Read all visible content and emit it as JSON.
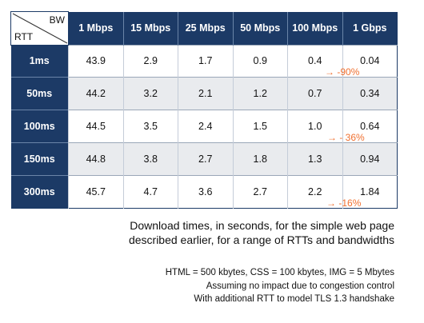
{
  "table": {
    "corner": {
      "col_header": "BW",
      "row_header": "RTT"
    },
    "columns": [
      "1 Mbps",
      "15 Mbps",
      "25 Mbps",
      "50 Mbps",
      "100 Mbps",
      "1 Gbps"
    ],
    "rows": [
      {
        "label": "1ms",
        "values": [
          "43.9",
          "2.9",
          "1.7",
          "0.9",
          "0.4",
          "0.04"
        ]
      },
      {
        "label": "50ms",
        "values": [
          "44.2",
          "3.2",
          "2.1",
          "1.2",
          "0.7",
          "0.34"
        ]
      },
      {
        "label": "100ms",
        "values": [
          "44.5",
          "3.5",
          "2.4",
          "1.5",
          "1.0",
          "0.64"
        ]
      },
      {
        "label": "150ms",
        "values": [
          "44.8",
          "3.8",
          "2.7",
          "1.8",
          "1.3",
          "0.94"
        ]
      },
      {
        "label": "300ms",
        "values": [
          "45.7",
          "4.7",
          "3.6",
          "2.7",
          "2.2",
          "1.84"
        ]
      }
    ]
  },
  "annotations": {
    "row_1ms": {
      "arrow": "→",
      "text": "-90%"
    },
    "row_100ms": {
      "arrow": "→",
      "text": "- 36%"
    },
    "row_300ms": {
      "arrow": "→",
      "text": "-16%"
    },
    "color": "#f07030"
  },
  "caption": {
    "line1": "Download times, in seconds, for the simple web page",
    "line2": "described earlier, for a range of RTTs and bandwidths"
  },
  "notes": {
    "line1": "HTML = 500 kbytes, CSS = 100 kbytes, IMG = 5 Mbytes",
    "line2": "Assuming no impact due to congestion control",
    "line3": "With additional RTT to model TLS 1.3 handshake"
  },
  "colors": {
    "header_bg": "#1c3a66",
    "stripe": "#e9ebee"
  }
}
